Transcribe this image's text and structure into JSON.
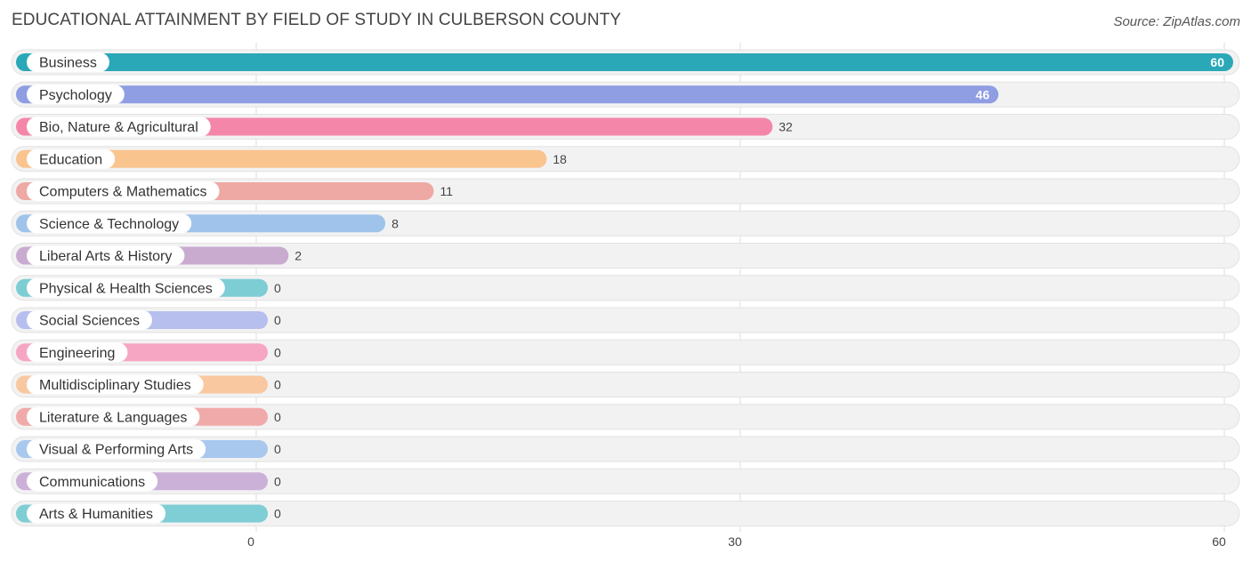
{
  "header": {
    "title": "EDUCATIONAL ATTAINMENT BY FIELD OF STUDY IN CULBERSON COUNTY",
    "source": "Source: ZipAtlas.com"
  },
  "chart_data": {
    "type": "bar",
    "orientation": "horizontal",
    "title": "EDUCATIONAL ATTAINMENT BY FIELD OF STUDY IN CULBERSON COUNTY",
    "xlim": [
      0,
      60
    ],
    "xticks": [
      "0",
      "30",
      "60"
    ],
    "grid": true,
    "categories": [
      "Business",
      "Psychology",
      "Bio, Nature & Agricultural",
      "Education",
      "Computers & Mathematics",
      "Science & Technology",
      "Liberal Arts & History",
      "Physical & Health Sciences",
      "Social Sciences",
      "Engineering",
      "Multidisciplinary Studies",
      "Literature & Languages",
      "Visual & Performing Arts",
      "Communications",
      "Arts & Humanities"
    ],
    "values": [
      60,
      46,
      32,
      18,
      11,
      8,
      2,
      0,
      0,
      0,
      0,
      0,
      0,
      0,
      0
    ],
    "value_labels": [
      "60",
      "46",
      "32",
      "18",
      "11",
      "8",
      "2",
      "0",
      "0",
      "0",
      "0",
      "0",
      "0",
      "0",
      "0"
    ],
    "colors": [
      "#2aa8b8",
      "#8f9de3",
      "#f487a9",
      "#f9c48e",
      "#eea9a4",
      "#9fc3ea",
      "#c9abd0",
      "#7dcdd4",
      "#b6bfee",
      "#f6a6c3",
      "#f9c8a0",
      "#f0aaa9",
      "#a9c8ee",
      "#cbb1d8",
      "#7fcdd5"
    ]
  }
}
